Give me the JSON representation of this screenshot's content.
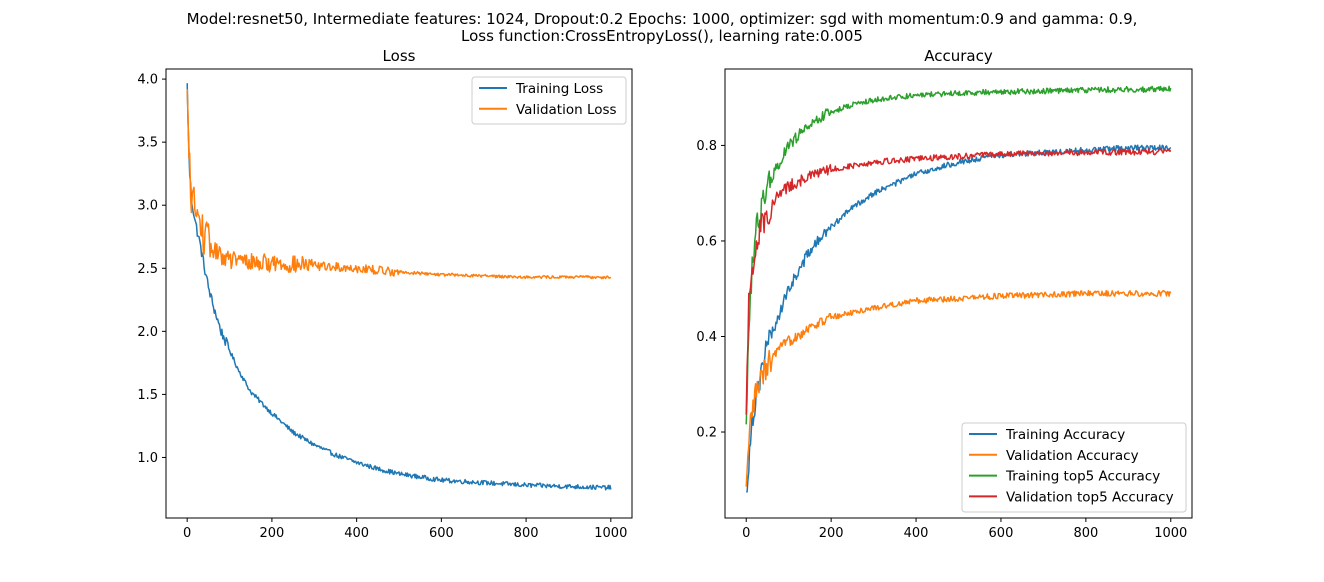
{
  "figure": {
    "suptitle_line1": "Model:resnet50, Intermediate features: 1024, Dropout:0.2 Epochs: 1000, optimizer: sgd with momentum:0.9 and gamma: 0.9,",
    "suptitle_line2": "Loss function:CrossEntropyLoss(), learning rate:0.005"
  },
  "colors": {
    "blue": "#1f77b4",
    "orange": "#ff7f0e",
    "green": "#2ca02c",
    "red": "#d62728"
  },
  "chart_data": [
    {
      "type": "line",
      "title": "Loss",
      "xlabel": "",
      "ylabel": "",
      "xlim": [
        -50,
        1050
      ],
      "ylim": [
        0.52,
        4.08
      ],
      "xticks": [
        0,
        200,
        400,
        600,
        800,
        1000
      ],
      "yticks": [
        1.0,
        1.5,
        2.0,
        2.5,
        3.0,
        3.5,
        4.0
      ],
      "ytick_labels": [
        "1.0",
        "1.5",
        "2.0",
        "2.5",
        "3.0",
        "3.5",
        "4.0"
      ],
      "legend_position": "upper right",
      "grid": false,
      "series": [
        {
          "name": "Training Loss",
          "color": "#1f77b4",
          "x": [
            0,
            5,
            10,
            20,
            30,
            40,
            50,
            60,
            80,
            100,
            120,
            150,
            200,
            250,
            300,
            350,
            400,
            450,
            500,
            600,
            700,
            800,
            900,
            1000
          ],
          "y": [
            3.95,
            3.3,
            3.05,
            2.85,
            2.7,
            2.52,
            2.35,
            2.22,
            2.0,
            1.85,
            1.7,
            1.52,
            1.35,
            1.2,
            1.1,
            1.02,
            0.96,
            0.91,
            0.87,
            0.82,
            0.8,
            0.78,
            0.77,
            0.76
          ]
        },
        {
          "name": "Validation Loss",
          "color": "#ff7f0e",
          "x": [
            0,
            5,
            10,
            20,
            30,
            40,
            50,
            60,
            80,
            100,
            150,
            200,
            250,
            300,
            400,
            500,
            600,
            700,
            800,
            900,
            1000
          ],
          "y": [
            3.85,
            3.3,
            3.1,
            2.95,
            2.85,
            2.75,
            2.7,
            2.65,
            2.6,
            2.57,
            2.55,
            2.54,
            2.53,
            2.52,
            2.5,
            2.47,
            2.45,
            2.44,
            2.43,
            2.43,
            2.43
          ]
        }
      ]
    },
    {
      "type": "line",
      "title": "Accuracy",
      "xlabel": "",
      "ylabel": "",
      "xlim": [
        -50,
        1050
      ],
      "ylim": [
        0.02,
        0.96
      ],
      "xticks": [
        0,
        200,
        400,
        600,
        800,
        1000
      ],
      "yticks": [
        0.2,
        0.4,
        0.6,
        0.8
      ],
      "ytick_labels": [
        "0.2",
        "0.4",
        "0.6",
        "0.8"
      ],
      "legend_position": "lower right",
      "grid": false,
      "series": [
        {
          "name": "Training Accuracy",
          "color": "#1f77b4",
          "x": [
            0,
            10,
            20,
            30,
            50,
            75,
            100,
            150,
            200,
            250,
            300,
            400,
            500,
            600,
            700,
            800,
            900,
            1000
          ],
          "y": [
            0.06,
            0.2,
            0.26,
            0.31,
            0.38,
            0.44,
            0.5,
            0.58,
            0.63,
            0.67,
            0.7,
            0.74,
            0.765,
            0.78,
            0.785,
            0.79,
            0.795,
            0.795
          ]
        },
        {
          "name": "Validation Accuracy",
          "color": "#ff7f0e",
          "x": [
            0,
            10,
            20,
            30,
            50,
            75,
            100,
            150,
            200,
            300,
            400,
            500,
            600,
            700,
            800,
            900,
            1000
          ],
          "y": [
            0.07,
            0.22,
            0.27,
            0.3,
            0.34,
            0.37,
            0.39,
            0.42,
            0.44,
            0.46,
            0.475,
            0.48,
            0.485,
            0.487,
            0.49,
            0.49,
            0.49
          ]
        },
        {
          "name": "Training top5 Accuracy",
          "color": "#2ca02c",
          "x": [
            0,
            5,
            10,
            20,
            30,
            50,
            75,
            100,
            150,
            200,
            250,
            300,
            400,
            500,
            600,
            700,
            800,
            900,
            1000
          ],
          "y": [
            0.2,
            0.4,
            0.5,
            0.6,
            0.65,
            0.71,
            0.76,
            0.8,
            0.845,
            0.87,
            0.885,
            0.895,
            0.905,
            0.91,
            0.912,
            0.914,
            0.916,
            0.917,
            0.918
          ]
        },
        {
          "name": "Validation top5 Accuracy",
          "color": "#d62728",
          "x": [
            0,
            5,
            10,
            20,
            30,
            50,
            75,
            100,
            150,
            200,
            300,
            400,
            500,
            600,
            700,
            800,
            900,
            1000
          ],
          "y": [
            0.22,
            0.45,
            0.52,
            0.58,
            0.62,
            0.66,
            0.695,
            0.715,
            0.735,
            0.75,
            0.765,
            0.772,
            0.777,
            0.782,
            0.784,
            0.785,
            0.786,
            0.787
          ]
        }
      ]
    }
  ]
}
